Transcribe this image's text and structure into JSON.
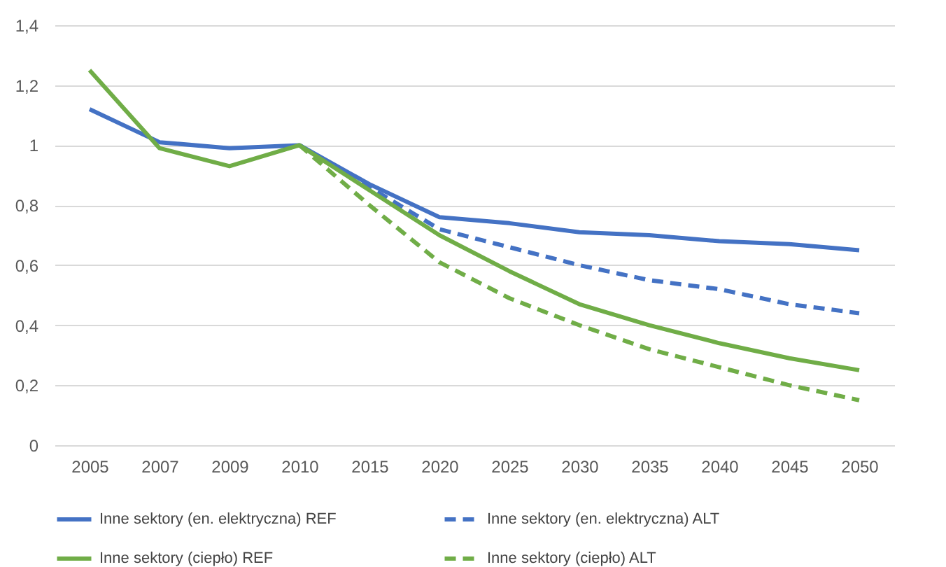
{
  "chart_data": {
    "type": "line",
    "categories": [
      "2005",
      "2007",
      "2009",
      "2010",
      "2015",
      "2020",
      "2025",
      "2030",
      "2035",
      "2040",
      "2045",
      "2050"
    ],
    "series": [
      {
        "name": "Inne sektory (en. elektryczna) REF",
        "color": "#4472c4",
        "line_style": "solid",
        "values": [
          1.12,
          1.01,
          0.99,
          1.0,
          0.87,
          0.76,
          0.74,
          0.71,
          0.7,
          0.68,
          0.67,
          0.65
        ]
      },
      {
        "name": "Inne sektory (en. elektryczna) ALT",
        "color": "#4472c4",
        "line_style": "dashed",
        "values": [
          null,
          null,
          null,
          1.0,
          0.86,
          0.72,
          0.66,
          0.6,
          0.55,
          0.52,
          0.47,
          0.44
        ]
      },
      {
        "name": "Inne sektory (ciepło) REF",
        "color": "#70ad47",
        "line_style": "solid",
        "values": [
          1.25,
          0.99,
          0.93,
          1.0,
          0.85,
          0.7,
          0.58,
          0.47,
          0.4,
          0.34,
          0.29,
          0.25
        ]
      },
      {
        "name": "Inne sektory (ciepło) ALT",
        "color": "#70ad47",
        "line_style": "dashed",
        "values": [
          null,
          null,
          null,
          1.0,
          0.8,
          0.61,
          0.49,
          0.4,
          0.32,
          0.26,
          0.2,
          0.15
        ]
      }
    ],
    "ylim": [
      0,
      1.4
    ],
    "yticks": [
      0,
      {
        "value": 0.2,
        "label": "0,2"
      },
      {
        "value": 0.4,
        "label": "0,4"
      },
      {
        "value": 0.6,
        "label": "0,6"
      },
      {
        "value": 0.8,
        "label": "0,8"
      },
      1,
      {
        "value": 1.2,
        "label": "1,2"
      },
      {
        "value": 1.4,
        "label": "1,4"
      }
    ],
    "grid": "y",
    "legend": "bottom",
    "marker": "none"
  }
}
